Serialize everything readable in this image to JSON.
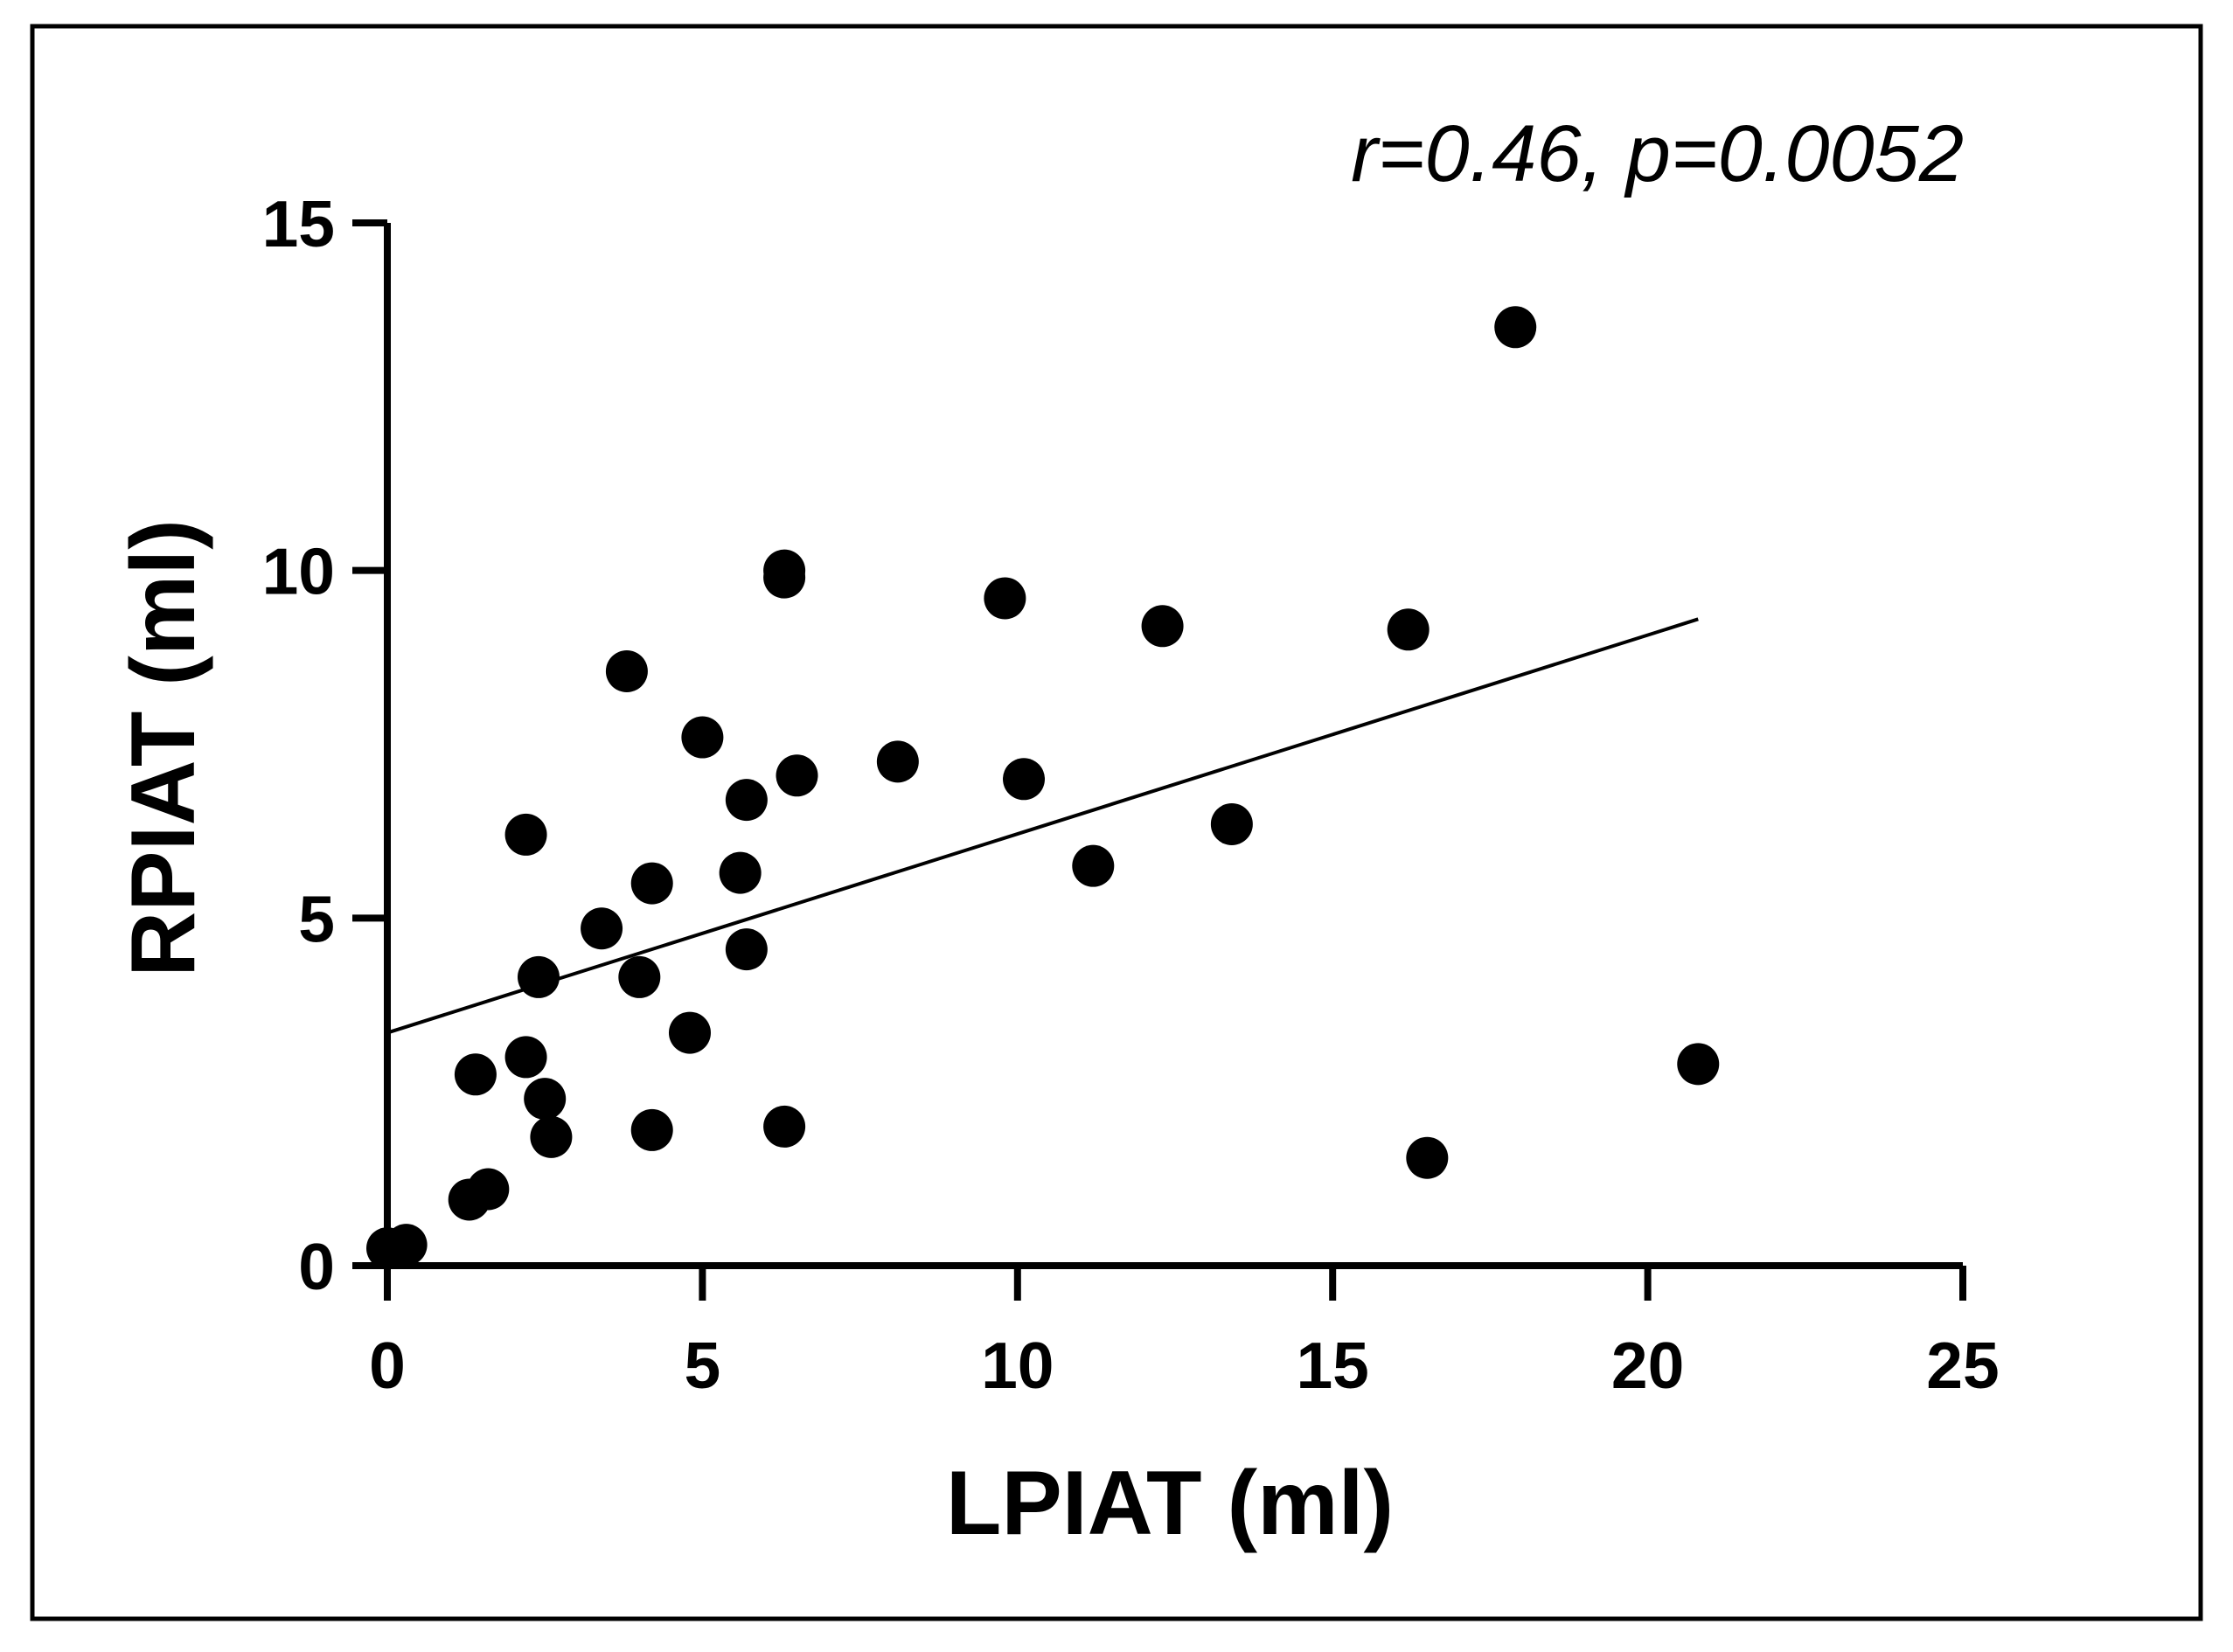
{
  "chart_data": {
    "type": "scatter",
    "title": "",
    "annotation": "r=0.46, p=0.0052",
    "xlabel": "LPIAT (ml)",
    "ylabel": "RPIAT (ml)",
    "xlim": [
      0,
      25
    ],
    "ylim": [
      0,
      15
    ],
    "xticks": [
      0,
      5,
      10,
      15,
      20,
      25
    ],
    "yticks": [
      0,
      5,
      10,
      15
    ],
    "grid": false,
    "series": [
      {
        "name": "points",
        "x": [
          0.0,
          0.3,
          1.3,
          1.6,
          1.4,
          2.2,
          2.2,
          2.4,
          2.5,
          2.6,
          3.4,
          3.8,
          4.0,
          4.2,
          4.2,
          4.8,
          5.0,
          5.6,
          5.7,
          5.7,
          6.3,
          6.3,
          6.3,
          6.5,
          8.1,
          9.8,
          10.1,
          11.2,
          12.3,
          13.4,
          16.2,
          16.5,
          17.9,
          20.8
        ],
        "y": [
          0.25,
          0.3,
          0.95,
          1.1,
          2.75,
          3.0,
          6.2,
          4.15,
          2.4,
          1.85,
          4.85,
          8.55,
          4.15,
          5.5,
          1.95,
          3.35,
          7.6,
          5.65,
          6.7,
          4.55,
          10.0,
          9.9,
          2.0,
          7.05,
          7.25,
          9.6,
          7.0,
          5.75,
          9.2,
          6.35,
          9.15,
          1.55,
          13.5,
          2.9
        ]
      }
    ],
    "regression": {
      "x": [
        0,
        20.8
      ],
      "y": [
        3.35,
        9.3
      ]
    }
  }
}
